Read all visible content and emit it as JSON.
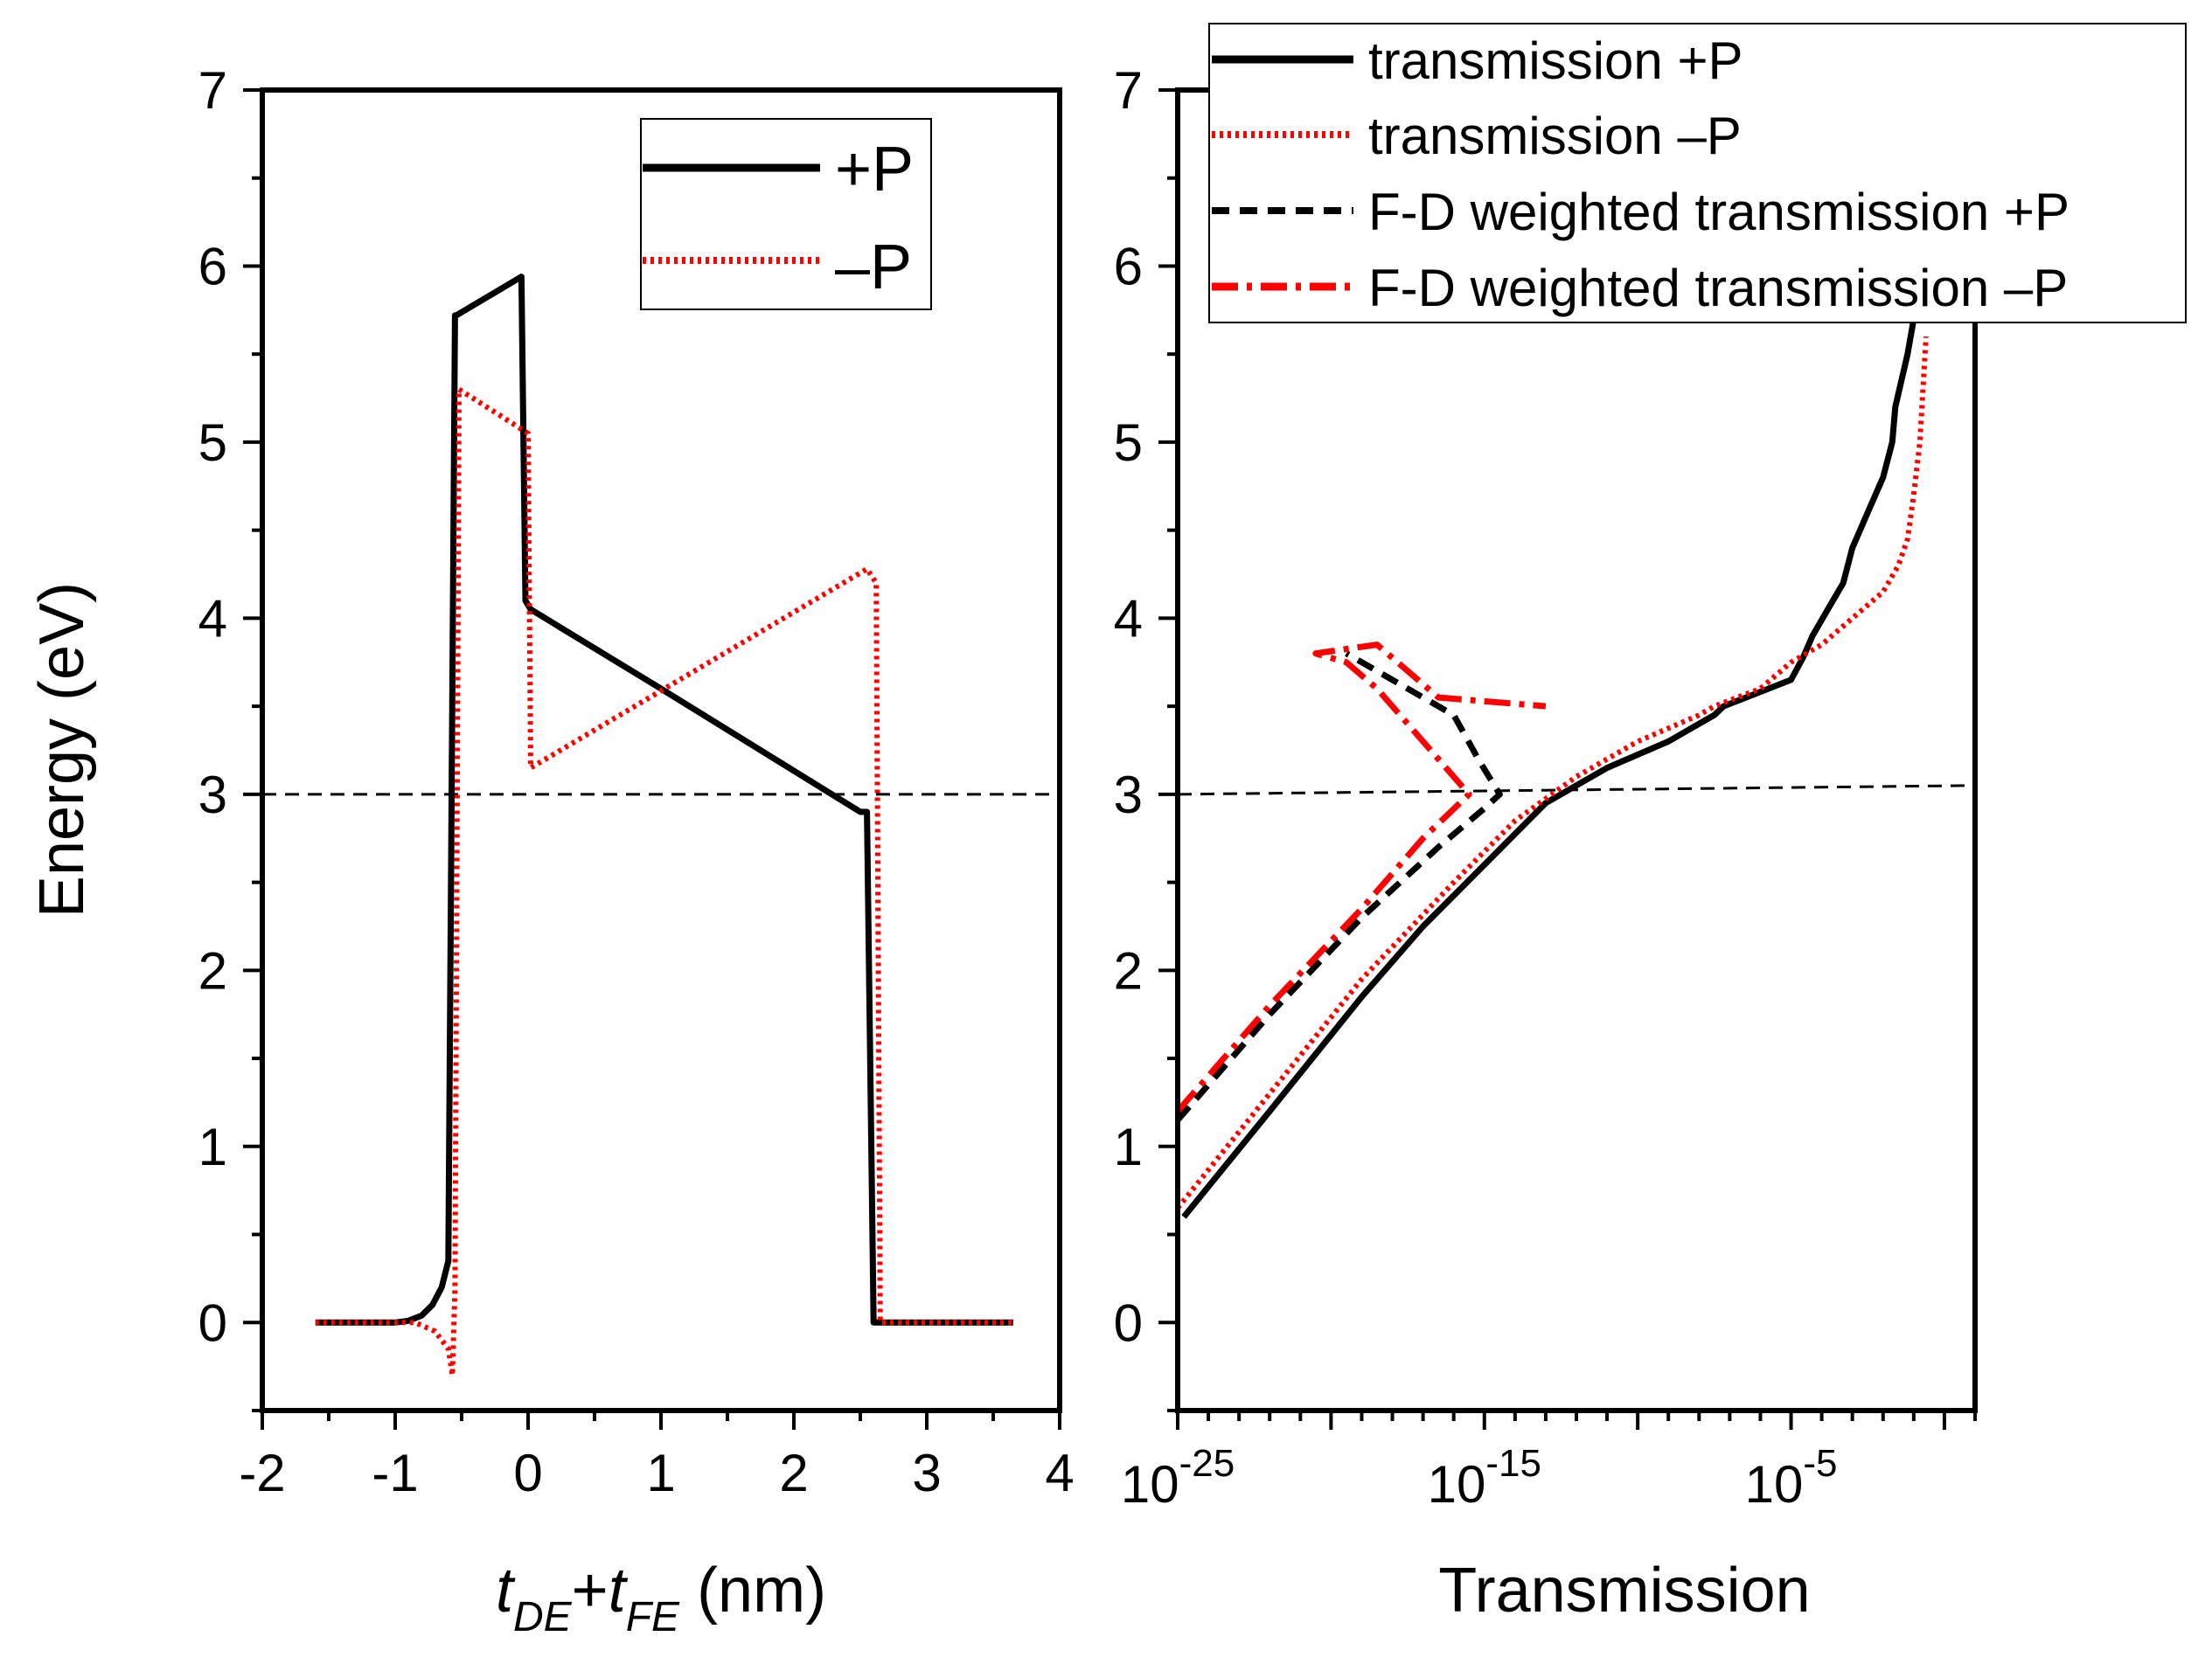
{
  "chart_data": [
    {
      "type": "line",
      "panel": "left",
      "xlabel_parts": {
        "t1": "t",
        "sub1": "DE",
        "plus": "+",
        "t2": "t",
        "sub2": "FE",
        "unit": " (nm)"
      },
      "ylabel": "Energy (eV)",
      "xlim": [
        -2,
        4
      ],
      "ylim": [
        -0.5,
        7
      ],
      "xticks": [
        -2,
        -1,
        0,
        1,
        2,
        3,
        4
      ],
      "yticks": [
        0,
        1,
        2,
        3,
        4,
        5,
        6,
        7
      ],
      "xtick_labels": [
        "-2",
        "-1",
        "0",
        "1",
        "2",
        "3",
        "4"
      ],
      "ytick_labels": [
        "0",
        "1",
        "2",
        "3",
        "4",
        "5",
        "6",
        "7"
      ],
      "reference_line_y": 3.0,
      "legend_position": "top-right",
      "series": [
        {
          "name": "+P",
          "color": "#000000",
          "style": "solid",
          "x": [
            -1.6,
            -1.2,
            -1.0,
            -0.9,
            -0.8,
            -0.72,
            -0.65,
            -0.6,
            -0.55,
            -0.54,
            -0.05,
            -0.02,
            0.02,
            1.0,
            2.5,
            2.55,
            2.6,
            2.62,
            3.65
          ],
          "y": [
            0,
            0,
            0,
            0.01,
            0.04,
            0.1,
            0.2,
            0.35,
            5.72,
            5.72,
            5.94,
            4.1,
            4.05,
            3.6,
            2.9,
            2.9,
            0,
            0,
            0
          ]
        },
        {
          "name": "–P",
          "color": "#ff0000",
          "style": "dotted",
          "x": [
            -1.6,
            -0.85,
            -0.7,
            -0.6,
            -0.57,
            -0.55,
            -0.52,
            0.0,
            0.02,
            2.55,
            2.62,
            2.65,
            3.65
          ],
          "y": [
            0,
            0,
            -0.05,
            -0.15,
            -0.3,
            0.2,
            5.3,
            5.05,
            3.15,
            4.28,
            4.2,
            0,
            0
          ]
        }
      ]
    },
    {
      "type": "line",
      "panel": "right",
      "xlabel": "Transmission",
      "ylabel": "",
      "xscale": "log",
      "xlim_log10": [
        -25,
        1
      ],
      "ylim": [
        -0.5,
        7
      ],
      "xtick_labels": [
        {
          "base": "10",
          "exp": "-25",
          "log10": -25
        },
        {
          "base": "10",
          "exp": "-15",
          "log10": -15
        },
        {
          "base": "10",
          "exp": "-5",
          "log10": -5
        }
      ],
      "yticks": [
        0,
        1,
        2,
        3,
        4,
        5,
        6,
        7
      ],
      "ytick_labels": [
        "0",
        "1",
        "2",
        "3",
        "4",
        "5",
        "6",
        "7"
      ],
      "reference_line": {
        "y_start": 3.0,
        "y_end": 3.05
      },
      "legend_position": "top-right",
      "series": [
        {
          "name": "transmission +P",
          "color": "#000000",
          "style": "solid",
          "log10_x": [
            -24.8,
            -22,
            -19,
            -17,
            -15,
            -13,
            -11,
            -9,
            -7.5,
            -7.2,
            -5,
            -4.6,
            -4.3,
            -3.8,
            -3.3,
            -3.0,
            -2.5,
            -2.0,
            -1.7,
            -1.6,
            -1.2,
            -0.9
          ],
          "y": [
            0.6,
            1.2,
            1.85,
            2.25,
            2.6,
            2.95,
            3.15,
            3.3,
            3.45,
            3.5,
            3.65,
            3.78,
            3.9,
            4.05,
            4.2,
            4.4,
            4.6,
            4.8,
            5.0,
            5.2,
            5.5,
            5.8
          ]
        },
        {
          "name": "transmission –P",
          "color": "#ff0000",
          "style": "dotted",
          "log10_x": [
            -25,
            -22,
            -19,
            -16,
            -14,
            -12,
            -10,
            -8,
            -7.5,
            -6,
            -5,
            -4,
            -3,
            -2,
            -1.5,
            -1.2,
            -1.0,
            -0.8,
            -0.6
          ],
          "y": [
            0.65,
            1.3,
            1.95,
            2.5,
            2.85,
            3.1,
            3.3,
            3.45,
            3.5,
            3.6,
            3.75,
            3.85,
            4.0,
            4.15,
            4.3,
            4.45,
            4.7,
            5.0,
            5.6
          ]
        },
        {
          "name": "F-D weighted transmission +P",
          "color": "#000000",
          "style": "dashed",
          "log10_x": [
            -25,
            -22,
            -19,
            -16.5,
            -15,
            -14.5,
            -15.2,
            -16,
            -17.5,
            -18.5,
            -19.5
          ],
          "y": [
            1.15,
            1.75,
            2.3,
            2.7,
            2.92,
            3.0,
            3.2,
            3.45,
            3.6,
            3.7,
            3.8
          ]
        },
        {
          "name": "F-D weighted transmission –P",
          "color": "#ff0000",
          "style": "dash-dot",
          "log10_x": [
            -25,
            -22,
            -19,
            -17,
            -15.5,
            -16.5,
            -17.5,
            -18.5,
            -19.5,
            -20.5,
            -18.5,
            -16.5,
            -13
          ],
          "y": [
            1.2,
            1.8,
            2.35,
            2.75,
            3.0,
            3.2,
            3.4,
            3.6,
            3.75,
            3.8,
            3.85,
            3.55,
            3.5
          ]
        }
      ]
    }
  ],
  "legends": {
    "left": [
      "+P",
      "–P"
    ],
    "right": [
      "transmission +P",
      "transmission –P",
      "F-D weighted transmission +P",
      "F-D weighted transmission –P"
    ]
  }
}
